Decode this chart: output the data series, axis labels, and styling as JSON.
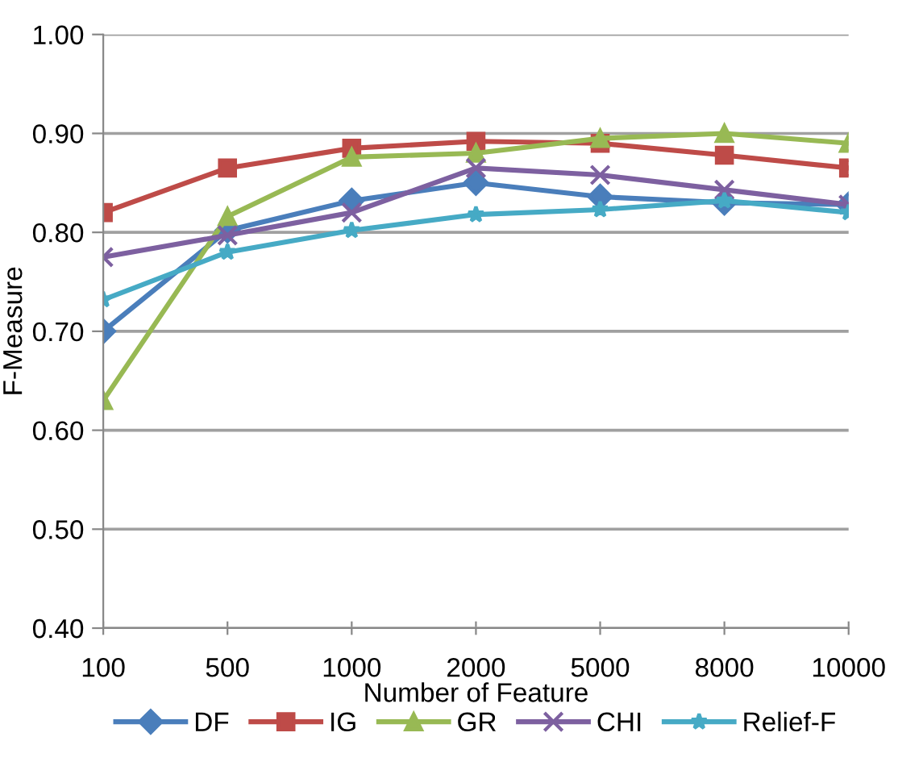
{
  "chart_data": {
    "type": "line",
    "xlabel": "Number of Feature",
    "ylabel": "F-Measure",
    "categories": [
      "100",
      "500",
      "1000",
      "2000",
      "5000",
      "8000",
      "10000"
    ],
    "series": [
      {
        "name": "DF",
        "color": "#4a7ebb",
        "marker": "diamond",
        "values": [
          0.7,
          0.802,
          0.832,
          0.85,
          0.836,
          0.83,
          0.828
        ]
      },
      {
        "name": "IG",
        "color": "#be4b48",
        "marker": "square",
        "values": [
          0.82,
          0.865,
          0.885,
          0.892,
          0.89,
          0.878,
          0.865
        ]
      },
      {
        "name": "GR",
        "color": "#98b954",
        "marker": "triangle",
        "values": [
          0.63,
          0.816,
          0.876,
          0.88,
          0.895,
          0.9,
          0.89
        ]
      },
      {
        "name": "CHI",
        "color": "#7d60a0",
        "marker": "cross",
        "values": [
          0.775,
          0.797,
          0.82,
          0.865,
          0.858,
          0.843,
          0.828
        ]
      },
      {
        "name": "Relief-F",
        "color": "#46aac5",
        "marker": "star",
        "values": [
          0.732,
          0.78,
          0.802,
          0.818,
          0.823,
          0.832,
          0.82
        ]
      }
    ],
    "ylim": [
      0.4,
      1.0
    ],
    "yticks": [
      {
        "value": 0.4,
        "label": "0.40"
      },
      {
        "value": 0.5,
        "label": "0.50"
      },
      {
        "value": 0.6,
        "label": "0.60"
      },
      {
        "value": 0.7,
        "label": "0.70"
      },
      {
        "value": 0.8,
        "label": "0.80"
      },
      {
        "value": 0.9,
        "label": "0.90"
      },
      {
        "value": 1.0,
        "label": "1.00"
      }
    ],
    "grid": "y",
    "legend": "bottom",
    "line_style": "solid"
  }
}
